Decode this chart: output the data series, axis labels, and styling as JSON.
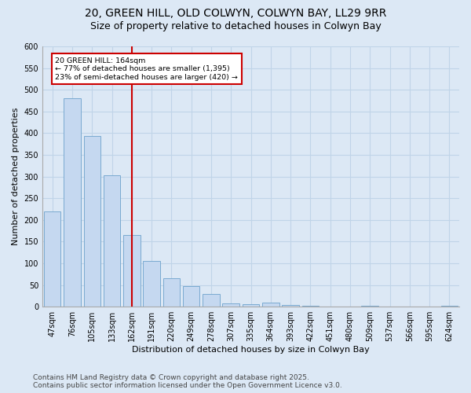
{
  "title_line1": "20, GREEN HILL, OLD COLWYN, COLWYN BAY, LL29 9RR",
  "title_line2": "Size of property relative to detached houses in Colwyn Bay",
  "xlabel": "Distribution of detached houses by size in Colwyn Bay",
  "ylabel": "Number of detached properties",
  "categories": [
    "47sqm",
    "76sqm",
    "105sqm",
    "133sqm",
    "162sqm",
    "191sqm",
    "220sqm",
    "249sqm",
    "278sqm",
    "307sqm",
    "335sqm",
    "364sqm",
    "393sqm",
    "422sqm",
    "451sqm",
    "480sqm",
    "509sqm",
    "537sqm",
    "566sqm",
    "595sqm",
    "624sqm"
  ],
  "values": [
    220,
    480,
    393,
    303,
    165,
    105,
    65,
    47,
    30,
    8,
    5,
    10,
    4,
    3,
    0,
    0,
    3,
    0,
    0,
    0,
    3
  ],
  "bar_color": "#c5d8f0",
  "bar_edge_color": "#7aaad0",
  "grid_color": "#c0d4e8",
  "background_color": "#dce8f5",
  "annotation_text": "20 GREEN HILL: 164sqm\n← 77% of detached houses are smaller (1,395)\n23% of semi-detached houses are larger (420) →",
  "annotation_box_color": "#ffffff",
  "annotation_box_edge": "#cc0000",
  "redline_index": 4,
  "ylim": [
    0,
    600
  ],
  "yticks": [
    0,
    50,
    100,
    150,
    200,
    250,
    300,
    350,
    400,
    450,
    500,
    550,
    600
  ],
  "footer_line1": "Contains HM Land Registry data © Crown copyright and database right 2025.",
  "footer_line2": "Contains public sector information licensed under the Open Government Licence v3.0.",
  "title_fontsize": 10,
  "subtitle_fontsize": 9,
  "axis_label_fontsize": 8,
  "tick_fontsize": 7,
  "footer_fontsize": 6.5
}
